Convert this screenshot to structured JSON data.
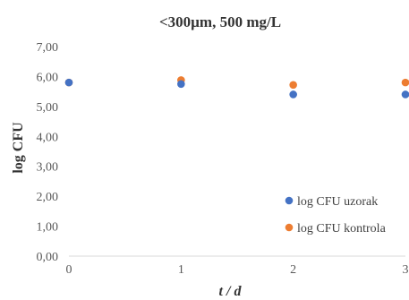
{
  "chart_data": {
    "type": "scatter",
    "title": "<300µm, 500 mg/L",
    "xlabel": "t / d",
    "ylabel": "log CFU",
    "xlim": [
      0,
      3
    ],
    "ylim": [
      0,
      7
    ],
    "x_ticks": [
      "0",
      "1",
      "2",
      "3"
    ],
    "y_ticks": [
      "0,00",
      "1,00",
      "2,00",
      "3,00",
      "4,00",
      "5,00",
      "6,00",
      "7,00"
    ],
    "grid": false,
    "legend_position": "bottom-right",
    "series": [
      {
        "name": "log CFU uzorak",
        "color": "#4472C4",
        "x": [
          0,
          1,
          2,
          3
        ],
        "y": [
          5.8,
          5.75,
          5.4,
          5.4
        ]
      },
      {
        "name": "log CFU kontrola",
        "color": "#ED7D31",
        "x": [
          0,
          1,
          2,
          3
        ],
        "y": [
          5.8,
          5.88,
          5.72,
          5.8
        ]
      }
    ]
  }
}
